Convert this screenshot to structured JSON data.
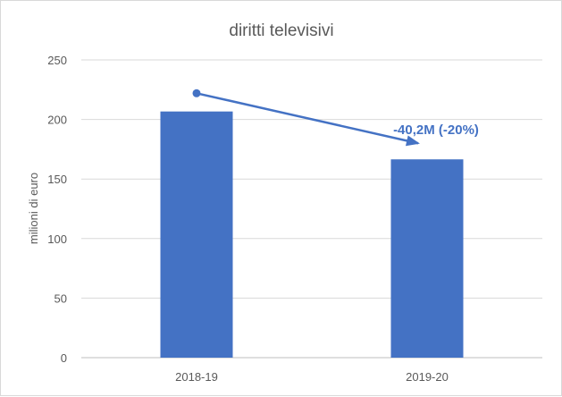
{
  "chart_data": {
    "type": "bar",
    "title": "diritti televisivi",
    "xlabel": "",
    "ylabel": "milioni di euro",
    "categories": [
      "2018-19",
      "2019-20"
    ],
    "values": [
      206.7,
      166.5
    ],
    "ylim": [
      0,
      250
    ],
    "yticks": [
      0,
      50,
      100,
      150,
      200,
      250
    ],
    "grid": true,
    "legend": "none",
    "bar_color": "#4472c4",
    "annotation": {
      "text": "-40,2M (-20%)",
      "color": "#4472c4",
      "arrow_from": {
        "category": "2018-19",
        "value": 222
      },
      "arrow_to": {
        "category": "2019-20",
        "value": 180
      }
    }
  }
}
